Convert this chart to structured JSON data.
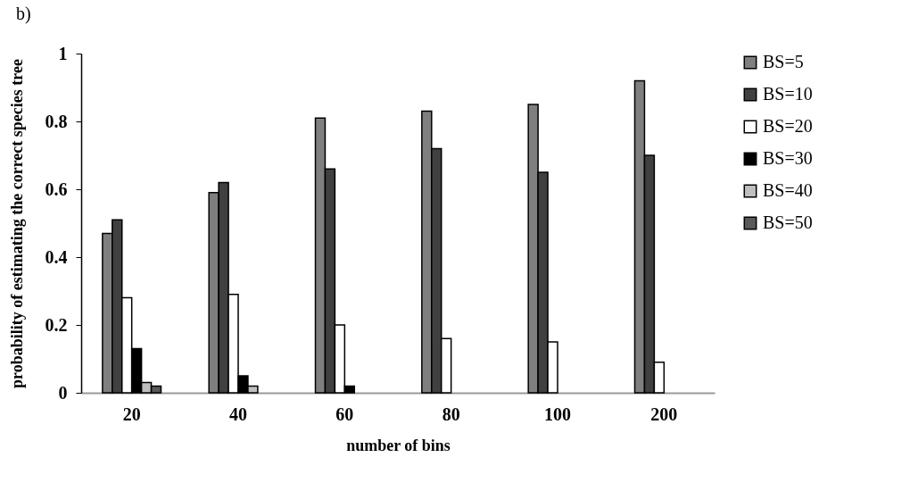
{
  "chart_data": {
    "type": "bar",
    "annotations": [
      "b)"
    ],
    "xlabel": "number of bins",
    "ylabel": "probability of estimating the correct species tree",
    "categories": [
      "20",
      "40",
      "60",
      "80",
      "100",
      "200"
    ],
    "series": [
      {
        "name": "BS=5",
        "color": "#7f7f7f",
        "values": [
          0.47,
          0.59,
          0.81,
          0.83,
          0.85,
          0.92
        ]
      },
      {
        "name": "BS=10",
        "color": "#404040",
        "values": [
          0.51,
          0.62,
          0.66,
          0.72,
          0.65,
          0.7
        ]
      },
      {
        "name": "BS=20",
        "color": "#ffffff",
        "values": [
          0.28,
          0.29,
          0.2,
          0.16,
          0.15,
          0.09
        ]
      },
      {
        "name": "BS=30",
        "color": "#000000",
        "values": [
          0.13,
          0.05,
          0.02,
          null,
          null,
          null
        ]
      },
      {
        "name": "BS=40",
        "color": "#bfbfbf",
        "values": [
          0.03,
          0.02,
          null,
          null,
          null,
          null
        ]
      },
      {
        "name": "BS=50",
        "color": "#595959",
        "values": [
          0.02,
          null,
          null,
          null,
          null,
          null
        ]
      }
    ],
    "ylim": [
      0,
      1
    ],
    "yticks": [
      0,
      0.2,
      0.4,
      0.6,
      0.8,
      1
    ],
    "grid": false,
    "legend": "right"
  }
}
